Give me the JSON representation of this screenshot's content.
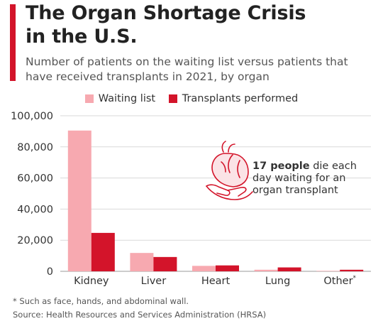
{
  "header": {
    "title_line1": "The Organ Shortage Crisis",
    "title_line2": "in the U.S.",
    "subtitle_line1": "Number of patients on the waiting list versus patients that",
    "subtitle_line2": "have received transplants in 2021, by organ"
  },
  "annotation": {
    "bold": "17 people",
    "line1_rest": " die each",
    "line2": "day waiting for an",
    "line3": "organ transplant",
    "icon": "heart-in-hand-icon"
  },
  "footer": {
    "footnote": "* Such as face, hands, and abdominal wall.",
    "source": "Source: Health Resources and Services Administration (HRSA)"
  },
  "colors": {
    "accent": "#d3142a",
    "waiting": "#f7a9b0",
    "transplants": "#d3142a",
    "grid": "#d9d9d9"
  },
  "chart_data": {
    "type": "bar",
    "categories": [
      "Kidney",
      "Liver",
      "Heart",
      "Lung",
      "Other*"
    ],
    "series": [
      {
        "name": "Waiting list",
        "values": [
          90500,
          11800,
          3500,
          1000,
          300
        ]
      },
      {
        "name": "Transplants performed",
        "values": [
          24700,
          9200,
          3800,
          2500,
          1000
        ]
      }
    ],
    "ylim": [
      0,
      100000
    ],
    "yticks": [
      0,
      20000,
      40000,
      60000,
      80000,
      100000
    ],
    "ytick_labels": [
      "0",
      "20,000",
      "40,000",
      "60,000",
      "80,000",
      "100,000"
    ],
    "legend_position": "top",
    "grid": true
  }
}
